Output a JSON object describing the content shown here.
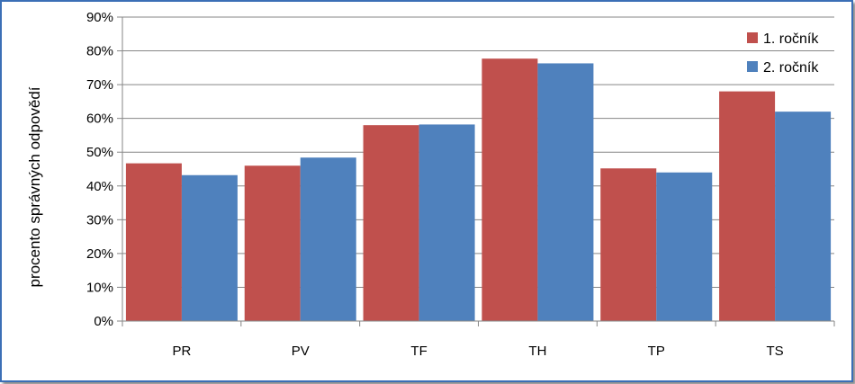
{
  "chart_data": {
    "type": "bar",
    "categories": [
      "PR",
      "PV",
      "TF",
      "TH",
      "TP",
      "TS"
    ],
    "series": [
      {
        "name": "1. ročník",
        "color": "#c0504d",
        "values": [
          0.467,
          0.46,
          0.58,
          0.777,
          0.452,
          0.68
        ]
      },
      {
        "name": "2. ročník",
        "color": "#4f81bd",
        "values": [
          0.432,
          0.484,
          0.582,
          0.763,
          0.44,
          0.62
        ]
      }
    ],
    "xlabel": "",
    "ylabel": "procento správných odpovědí",
    "ylim": [
      0,
      0.9
    ],
    "yticks": [
      "0%",
      "10%",
      "20%",
      "30%",
      "40%",
      "50%",
      "60%",
      "70%",
      "80%",
      "90%"
    ],
    "grid": true,
    "legend_position": "top-right"
  }
}
